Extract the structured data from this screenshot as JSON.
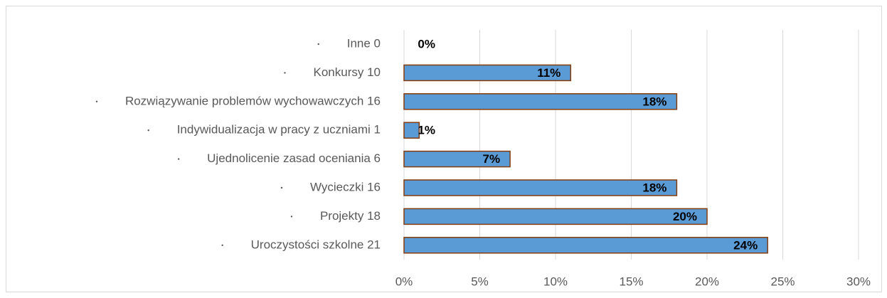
{
  "chart_data": {
    "type": "hbar",
    "categories": [
      "Inne 0",
      "Konkursy 10",
      "Rozwiązywanie problemów wychowawczych 16",
      "Indywidualizacja w pracy z uczniami 1",
      "Ujednolicenie zasad oceniania 6",
      "Wycieczki 16",
      "Projekty 18",
      "Uroczystości szkolne 21"
    ],
    "values": [
      0,
      11,
      18,
      1,
      7,
      18,
      20,
      24
    ],
    "value_labels": [
      "0%",
      "11%",
      "18%",
      "1%",
      "7%",
      "18%",
      "20%",
      "24%"
    ],
    "color": "#5b9bd5",
    "edge_color": "#843c0c",
    "xlim": [
      0,
      30
    ],
    "xticks": [
      {
        "value": 0,
        "label": "0%"
      },
      {
        "value": 5,
        "label": "5%"
      },
      {
        "value": 10,
        "label": "10%"
      },
      {
        "value": 15,
        "label": "15%"
      },
      {
        "value": 20,
        "label": "20%"
      },
      {
        "value": 25,
        "label": "25%"
      },
      {
        "value": 30,
        "label": "30%"
      }
    ],
    "grid": true
  }
}
